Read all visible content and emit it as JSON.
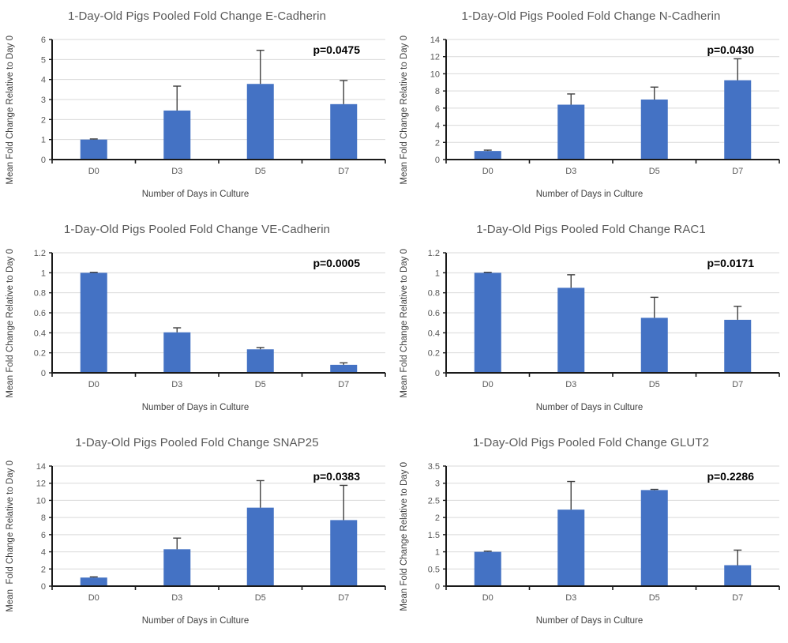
{
  "page": {
    "background": "#ffffff"
  },
  "styles": {
    "bar_color": "#4472C4",
    "error_color": "#404040",
    "grid_color": "#d9d9d9",
    "axis_color": "#1a1a1a",
    "tick_label_color": "#595959",
    "title_color": "#595959",
    "axis_title_color": "#404040",
    "annotation_color": "#000000"
  },
  "chart_data": [
    {
      "type": "bar",
      "title": "1-Day-Old Pigs Pooled Fold Change E-Cadherin",
      "xlabel": "Number of Days in Culture",
      "ylabel": "Mean Fold Change Relative to Day 0",
      "categories": [
        "D0",
        "D3",
        "D5",
        "D7"
      ],
      "values": [
        1.0,
        2.45,
        3.78,
        2.77
      ],
      "errors_up": [
        0.03,
        1.22,
        1.68,
        1.18
      ],
      "annotation": "p=0.0475",
      "ylim": [
        0,
        6
      ],
      "ytick_step": 1,
      "ytick_labels": [
        "0",
        "1",
        "2",
        "3",
        "4",
        "5",
        "6"
      ],
      "grid": true,
      "legend": "none"
    },
    {
      "type": "bar",
      "title": "1-Day-Old Pigs Pooled Fold Change N-Cadherin",
      "xlabel": "Number of Days in Culture",
      "ylabel": "Mean Fold Change Relative to Day 0",
      "categories": [
        "D0",
        "D3",
        "D5",
        "D7"
      ],
      "values": [
        1.0,
        6.4,
        7.0,
        9.25
      ],
      "errors_up": [
        0.1,
        1.25,
        1.45,
        2.5
      ],
      "annotation": "p=0.0430",
      "ylim": [
        0,
        14
      ],
      "ytick_step": 2,
      "ytick_labels": [
        "0",
        "2",
        "4",
        "6",
        "8",
        "10",
        "12",
        "14"
      ],
      "grid": true,
      "legend": "none"
    },
    {
      "type": "bar",
      "title": "1-Day-Old Pigs Pooled Fold Change VE-Cadherin",
      "xlabel": "Number of Days in Culture",
      "ylabel": "Mean Fold Change Relative to Day 0",
      "categories": [
        "D0",
        "D3",
        "D5",
        "D7"
      ],
      "values": [
        1.0,
        0.405,
        0.235,
        0.08
      ],
      "errors_up": [
        0.005,
        0.045,
        0.018,
        0.02
      ],
      "annotation": "p=0.0005",
      "ylim": [
        0,
        1.2
      ],
      "ytick_step": 0.2,
      "ytick_labels": [
        "0",
        "0.2",
        "0.4",
        "0.6",
        "0.8",
        "1",
        "1.2"
      ],
      "grid": true,
      "legend": "none"
    },
    {
      "type": "bar",
      "title": "1-Day-Old Pigs Pooled Fold Change RAC1",
      "xlabel": "Number of Days in Culture",
      "ylabel": "Mean Fold Change Relative to Day 0",
      "categories": [
        "D0",
        "D3",
        "D5",
        "D7"
      ],
      "values": [
        1.0,
        0.85,
        0.55,
        0.53
      ],
      "errors_up": [
        0.005,
        0.13,
        0.205,
        0.135
      ],
      "annotation": "p=0.0171",
      "ylim": [
        0,
        1.2
      ],
      "ytick_step": 0.2,
      "ytick_labels": [
        "0",
        "0.2",
        "0.4",
        "0.6",
        "0.8",
        "1",
        "1.2"
      ],
      "grid": true,
      "legend": "none"
    },
    {
      "type": "bar",
      "title": "1-Day-Old Pigs Pooled Fold Change SNAP25",
      "xlabel": "Number of Days in Culture",
      "ylabel": "Mean  Fold Change Relative to Day 0",
      "categories": [
        "D0",
        "D3",
        "D5",
        "D7"
      ],
      "values": [
        1.0,
        4.3,
        9.15,
        7.7
      ],
      "errors_up": [
        0.08,
        1.3,
        3.15,
        4.05
      ],
      "annotation": "p=0.0383",
      "ylim": [
        0,
        14
      ],
      "ytick_step": 2,
      "ytick_labels": [
        "0",
        "2",
        "4",
        "6",
        "8",
        "10",
        "12",
        "14"
      ],
      "grid": true,
      "legend": "none"
    },
    {
      "type": "bar",
      "title": "1-Day-Old Pigs Pooled Fold Change GLUT2",
      "xlabel": "Number of Days in Culture",
      "ylabel": "Mean Fold Change Relative to Day 0",
      "categories": [
        "D0",
        "D3",
        "D5",
        "D7"
      ],
      "values": [
        1.0,
        2.23,
        2.8,
        0.61
      ],
      "errors_up": [
        0.02,
        0.82,
        0.02,
        0.44
      ],
      "annotation": "p=0.2286",
      "ylim": [
        0,
        3.5
      ],
      "ytick_step": 0.5,
      "ytick_labels": [
        "0",
        "0.5",
        "1",
        "1.5",
        "2",
        "2.5",
        "3",
        "3.5"
      ],
      "grid": true,
      "legend": "none"
    }
  ]
}
